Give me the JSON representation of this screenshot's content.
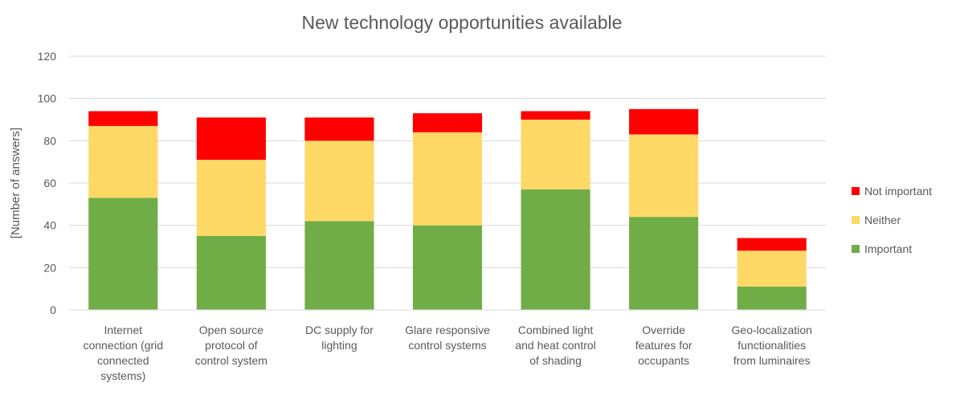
{
  "chart_data": {
    "type": "bar",
    "stacked": true,
    "title": "New technology opportunities available",
    "xlabel": "",
    "ylabel": "[Number of answers]",
    "ylim": [
      0,
      120
    ],
    "yticks": [
      0,
      20,
      40,
      60,
      80,
      100,
      120
    ],
    "grid": true,
    "legend_position": "right",
    "categories": [
      [
        "Internet",
        "connection (grid",
        "connected",
        "systems)"
      ],
      [
        "Open source",
        "protocol of",
        "control system"
      ],
      [
        "DC supply for",
        "lighting"
      ],
      [
        "Glare responsive",
        "control systems"
      ],
      [
        "Combined light",
        "and heat control",
        "of shading"
      ],
      [
        "Override",
        "features for",
        "occupants"
      ],
      [
        "Geo-localization",
        "functionalities",
        "from luminaires"
      ]
    ],
    "series": [
      {
        "name": "Important",
        "color": "#70ad47",
        "values": [
          53,
          35,
          42,
          40,
          57,
          44,
          11
        ]
      },
      {
        "name": "Neither",
        "color": "#ffd966",
        "values": [
          34,
          36,
          38,
          44,
          33,
          39,
          17
        ]
      },
      {
        "name": "Not important",
        "color": "#ff0000",
        "values": [
          7,
          20,
          11,
          9,
          4,
          12,
          6
        ]
      }
    ],
    "legend_order": [
      "Not important",
      "Neither",
      "Important"
    ]
  }
}
